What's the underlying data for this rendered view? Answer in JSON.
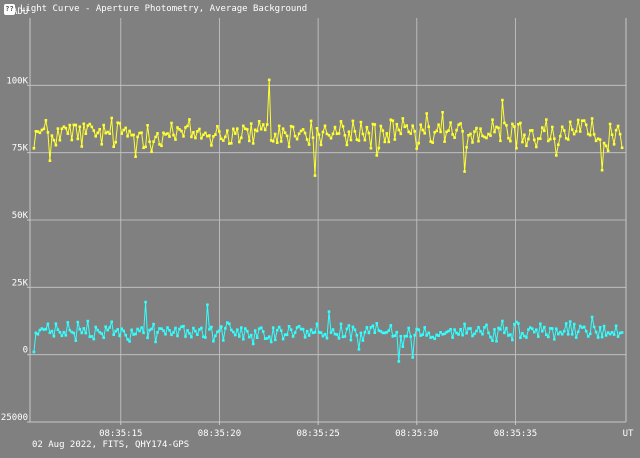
{
  "window": {
    "icon": "app-icon",
    "title": "Light Curve - Aperture Photometry, Average Background"
  },
  "footer": "02 Aug 2022, FITS, QHY174-GPS",
  "colors": {
    "background": "#808080",
    "grid": "#c8c8c8",
    "target": "#ffff33",
    "background_series": "#33ffff",
    "text": "#ffffff"
  },
  "chart_data": {
    "type": "line",
    "ylabel": "ADU",
    "xlabel": "UT",
    "ylim": [
      -25000,
      125000
    ],
    "yticks": [
      {
        "value": 100000,
        "label": "100K"
      },
      {
        "value": 75000,
        "label": "75K"
      },
      {
        "value": 50000,
        "label": "50K"
      },
      {
        "value": 25000,
        "label": "25K"
      },
      {
        "value": 0,
        "label": "0"
      },
      {
        "value": -25000,
        "label": "-25000"
      }
    ],
    "xlim_seconds": [
      10.4,
      40.6
    ],
    "xticks": [
      {
        "value": 15,
        "label": "08:35:15"
      },
      {
        "value": 20,
        "label": "08:35:20"
      },
      {
        "value": 25,
        "label": "08:35:25"
      },
      {
        "value": 30,
        "label": "08:35:30"
      },
      {
        "value": 35,
        "label": "08:35:35"
      }
    ],
    "grid": true,
    "markers": true,
    "series": [
      {
        "color": "#ffff33",
        "level": 82000,
        "jitter": 5500,
        "spikes": [
          [
            8,
            72000
          ],
          [
            51,
            73500
          ],
          [
            118,
            102000
          ],
          [
            141,
            66500
          ],
          [
            172,
            74000
          ],
          [
            192,
            76500
          ],
          [
            205,
            90000
          ],
          [
            216,
            68000
          ],
          [
            235,
            94500
          ],
          [
            262,
            74000
          ],
          [
            285,
            68500
          ]
        ]
      },
      {
        "color": "#33ffff",
        "level": 8500,
        "jitter": 3200,
        "spikes": [
          [
            0,
            1000
          ],
          [
            56,
            19500
          ],
          [
            87,
            18500
          ],
          [
            114,
            10000
          ],
          [
            148,
            16000
          ],
          [
            163,
            2000
          ],
          [
            183,
            -2500
          ],
          [
            185,
            3000
          ],
          [
            190,
            -1000
          ],
          [
            232,
            5000
          ],
          [
            280,
            14000
          ]
        ]
      }
    ],
    "points_per_series": 296
  }
}
